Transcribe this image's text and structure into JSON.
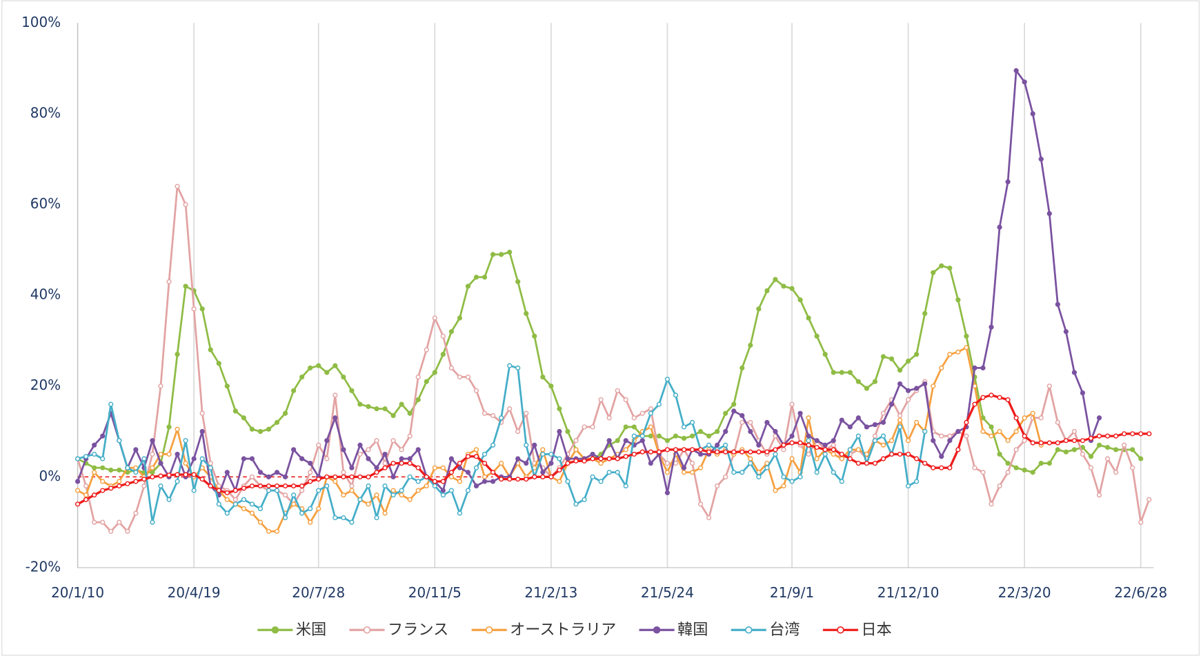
{
  "chart_data": {
    "type": "line",
    "categories": [
      "20/1/10",
      null,
      null,
      null,
      null,
      null,
      null,
      null,
      null,
      null,
      null,
      null,
      null,
      null,
      "20/4/19",
      null,
      null,
      null,
      null,
      null,
      null,
      null,
      null,
      null,
      null,
      null,
      null,
      null,
      null,
      "20/7/28",
      null,
      null,
      null,
      null,
      null,
      null,
      null,
      null,
      null,
      null,
      null,
      null,
      null,
      "20/11/5",
      null,
      null,
      null,
      null,
      null,
      null,
      null,
      null,
      null,
      null,
      null,
      null,
      null,
      "21/2/13",
      null,
      null,
      null,
      null,
      null,
      null,
      null,
      null,
      null,
      null,
      null,
      null,
      null,
      "21/5/24",
      null,
      null,
      null,
      null,
      null,
      null,
      null,
      null,
      null,
      null,
      null,
      null,
      null,
      null,
      "21/9/1",
      null,
      null,
      null,
      null,
      null,
      null,
      null,
      null,
      null,
      null,
      null,
      null,
      null,
      "21/12/10",
      null,
      null,
      null,
      null,
      null,
      null,
      null,
      null,
      null,
      null,
      null,
      null,
      null,
      "22/3/20",
      null,
      null,
      null,
      null,
      null,
      null,
      null,
      null,
      null,
      null,
      null,
      null,
      null,
      "22/6/28",
      null
    ],
    "series": [
      {
        "name": "米国",
        "color": "#8fbc45",
        "marker": "filled",
        "values": [
          4,
          3,
          2,
          2,
          1.5,
          1.5,
          1,
          1.5,
          1,
          1,
          3,
          11,
          27,
          42,
          41,
          37,
          28,
          25,
          20,
          14.5,
          13,
          10.5,
          10,
          10.5,
          12,
          14,
          19,
          22,
          24,
          24.5,
          23,
          24.5,
          22,
          19,
          16,
          15.5,
          15,
          15,
          13.5,
          16,
          14,
          17,
          21,
          23,
          27,
          32,
          35,
          42,
          44,
          44,
          49,
          49,
          49.5,
          43,
          36,
          31,
          22,
          20,
          15,
          10,
          6,
          4,
          4,
          5,
          7,
          8,
          11,
          11,
          9,
          9,
          9,
          8,
          9,
          8.5,
          9,
          10,
          9,
          10,
          14,
          16,
          24,
          29,
          37,
          41,
          43.5,
          42,
          41.5,
          39,
          35,
          31,
          27,
          23,
          23,
          23,
          21,
          19.5,
          21,
          26.5,
          26,
          23.5,
          25.5,
          27,
          36,
          45,
          46.5,
          46,
          39,
          31,
          22,
          13,
          11,
          5,
          3,
          2,
          1.5,
          1,
          3,
          3,
          6,
          5.5,
          6,
          6.5,
          4.5,
          7,
          6.5,
          6,
          6,
          6,
          4,
          null
        ]
      },
      {
        "name": "フランス",
        "color": "#e3a3a3",
        "marker": "hollow",
        "values": [
          4,
          -2,
          -10,
          -10,
          -12,
          -10,
          -12,
          -8,
          -2,
          5,
          20,
          43,
          64,
          60,
          37,
          14,
          3,
          -2,
          -3,
          -5,
          -2,
          0,
          -2,
          -3,
          -3,
          -4,
          -6,
          -3,
          1,
          7,
          4,
          18,
          1,
          -2,
          5,
          6,
          8,
          3,
          8,
          6,
          9,
          22,
          28,
          35,
          31,
          24,
          22,
          22,
          19,
          14,
          13.5,
          12,
          15,
          10,
          14,
          3,
          2,
          0,
          2,
          5,
          8,
          11,
          11,
          17,
          13,
          19,
          17,
          13,
          14,
          15,
          5,
          3,
          3,
          6,
          3,
          -6,
          -9,
          -2,
          0,
          5,
          12,
          12,
          8,
          5,
          9,
          6,
          16,
          7,
          5,
          8,
          6,
          7,
          4,
          5,
          6,
          4,
          9,
          14,
          17,
          13.5,
          17,
          19,
          21,
          10,
          9,
          9,
          10,
          9,
          2,
          1,
          -6,
          -2,
          1,
          6,
          8,
          13,
          13,
          20,
          12,
          8,
          10,
          5,
          2,
          -4,
          4,
          1,
          7,
          2,
          -10,
          -5
        ]
      },
      {
        "name": "オーストラリア",
        "color": "#f5a040",
        "marker": "hollow",
        "values": [
          -3,
          -4,
          1,
          -1,
          -2,
          -1,
          2,
          2,
          0,
          2,
          5,
          5,
          10.5,
          3,
          0,
          2,
          0,
          -3,
          -5,
          -6,
          -7,
          -8,
          -10,
          -12,
          -12,
          -8,
          -6,
          -7,
          -10,
          -7,
          0,
          -1,
          -4,
          -3,
          -5,
          -6,
          -4,
          -8,
          -3,
          -4,
          -5,
          -3,
          -2,
          2,
          2,
          0,
          -1,
          5,
          6,
          0,
          1,
          3,
          0,
          3,
          0,
          2,
          6,
          0,
          -1,
          3,
          6,
          4,
          4,
          3,
          4,
          5,
          6,
          8,
          10,
          11,
          5,
          1,
          5,
          1,
          1,
          2,
          6,
          5,
          6,
          5,
          6,
          4,
          1,
          3,
          -3,
          -2,
          4,
          1,
          13,
          4,
          6,
          5,
          4,
          6,
          6,
          5,
          8,
          7,
          8,
          12.5,
          8,
          12,
          10,
          20,
          24,
          27,
          27.5,
          28.5,
          20,
          10,
          9,
          10,
          8,
          10,
          13,
          14,
          7,
          null,
          null,
          null,
          null,
          null,
          null,
          null,
          null,
          null,
          null,
          null,
          null,
          null
        ]
      },
      {
        "name": "韓国",
        "color": "#7a52a0",
        "marker": "filled",
        "values": [
          -1,
          4,
          7,
          9,
          14,
          8,
          2,
          6,
          2,
          8,
          3,
          0,
          5,
          0,
          4,
          10,
          -2,
          -4,
          1,
          -3,
          4,
          4,
          1,
          0,
          1,
          0,
          6,
          4,
          3,
          0,
          8,
          13,
          6,
          2,
          7,
          4,
          2,
          5,
          0,
          4,
          4,
          6,
          0,
          -1,
          -3,
          4,
          2,
          1,
          -2,
          -1,
          -1,
          0,
          0,
          4,
          3,
          7,
          1,
          3,
          10,
          4,
          4,
          4,
          5,
          4,
          8,
          4,
          8,
          7,
          8,
          3,
          5,
          -3.5,
          6,
          2,
          6,
          5,
          5,
          7,
          10,
          14.5,
          13.5,
          10,
          7,
          12,
          10,
          7,
          9,
          14,
          9,
          8,
          7,
          8,
          12.5,
          11,
          13,
          11,
          11.5,
          12,
          16,
          20.5,
          19,
          19.5,
          20.5,
          8,
          4.5,
          8,
          10,
          11,
          24,
          24,
          33,
          55,
          65,
          89.5,
          87,
          80,
          70,
          58,
          38,
          32,
          23,
          18.5,
          8,
          13,
          null,
          null,
          null,
          null,
          null,
          null
        ]
      },
      {
        "name": "台湾",
        "color": "#45aec8",
        "marker": "hollow",
        "values": [
          4,
          4.5,
          5,
          4,
          16,
          8,
          2,
          1,
          4,
          -10,
          -2,
          -5,
          -1,
          8,
          -3,
          4,
          2,
          -6,
          -8,
          -6,
          -5,
          -6,
          -7,
          -3,
          -3,
          -9,
          -4,
          -8,
          -7,
          -3,
          -2,
          -9,
          -9,
          -10,
          -5,
          -2,
          -9,
          -2,
          -4,
          -3,
          0,
          -1,
          0,
          -2,
          -4,
          -3,
          -8,
          -3,
          2,
          5,
          7,
          13,
          24.5,
          24,
          7,
          0,
          5,
          5,
          4,
          -1,
          -6,
          -5,
          0,
          -1,
          1,
          1,
          -2,
          9,
          9,
          14,
          16,
          21.5,
          18,
          11,
          12,
          6,
          7,
          6,
          7,
          1,
          1,
          3,
          0,
          2,
          5,
          0,
          -1,
          0,
          8,
          1,
          5,
          1,
          -1,
          6,
          9,
          3,
          8,
          9,
          5,
          11,
          -2,
          -1,
          10,
          null,
          null,
          null,
          null,
          null,
          null,
          null,
          null,
          null,
          null,
          null,
          null,
          null,
          null,
          null,
          null,
          null,
          null,
          null,
          null,
          null,
          null,
          null,
          null,
          null,
          null,
          null
        ]
      },
      {
        "name": "日本",
        "color": "#ee1c1c",
        "marker": "hollow",
        "values": [
          -6,
          -5,
          -4,
          -3,
          -2.5,
          -2,
          -1.5,
          -1,
          -0.5,
          0,
          0.2,
          0.4,
          0.5,
          0.5,
          0.5,
          -0.5,
          -2,
          -3,
          -3.5,
          -3,
          -2.5,
          -2,
          -2,
          -2,
          -2,
          -2,
          -2,
          -2,
          -1,
          -0.5,
          0,
          0,
          0,
          0,
          0,
          0,
          1,
          2,
          3,
          3,
          3,
          2,
          0,
          -1,
          -1,
          1,
          3,
          4.5,
          4.5,
          3,
          1,
          -0.5,
          -0.5,
          -0.5,
          -0.5,
          0,
          0,
          0,
          1.5,
          3,
          3.5,
          3.5,
          4,
          4,
          4,
          4,
          4.5,
          5,
          5.5,
          5.5,
          5.5,
          6,
          6,
          6,
          6,
          6,
          5.5,
          5.5,
          5.5,
          5.5,
          5.5,
          5.5,
          5.5,
          5.5,
          6,
          7,
          7.5,
          7.5,
          7,
          6.5,
          6,
          6,
          5,
          4,
          3,
          3,
          3,
          4,
          5,
          5,
          5,
          4,
          3,
          2,
          2,
          2,
          6,
          12,
          16,
          17.5,
          18,
          17.5,
          17,
          13,
          9,
          7.5,
          7.5,
          7.5,
          7.5,
          8,
          8,
          8,
          8.5,
          9,
          9,
          9,
          9.5,
          9.5,
          9.5,
          9.5
        ]
      }
    ],
    "ylim": [
      -20,
      100
    ],
    "yticks": [
      {
        "value": -20,
        "label": "-20%"
      },
      {
        "value": 0,
        "label": "0%"
      },
      {
        "value": 20,
        "label": "20%"
      },
      {
        "value": 40,
        "label": "40%"
      },
      {
        "value": 60,
        "label": "60%"
      },
      {
        "value": 80,
        "label": "80%"
      },
      {
        "value": 100,
        "label": "100%"
      }
    ],
    "grid": "x",
    "legend": "bottom"
  }
}
